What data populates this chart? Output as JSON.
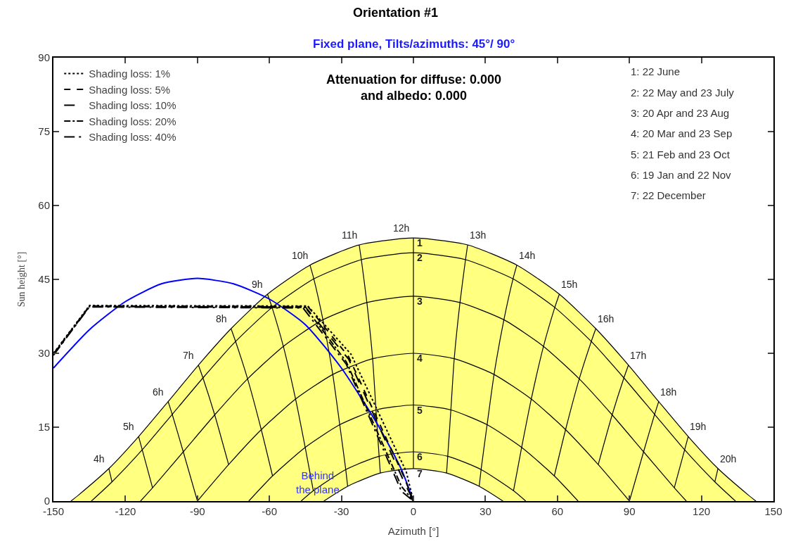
{
  "chart_data": {
    "type": "line",
    "title": "Orientation #1",
    "subtitle": "Fixed plane, Tilts/azimuths: 45°/ 90°",
    "xlabel": "Azimuth [°]",
    "ylabel": "Sun height [°]",
    "xlim": [
      -150,
      150
    ],
    "xticks": [
      -150,
      -120,
      -90,
      -60,
      -30,
      0,
      30,
      60,
      90,
      120,
      150
    ],
    "ylim": [
      0,
      90
    ],
    "yticks": [
      0,
      15,
      30,
      45,
      60,
      75,
      90
    ],
    "grid": false,
    "legend": "top left",
    "marker": "none",
    "series": [
      {
        "type": "area",
        "color": "#ffff80",
        "x": [
          -142.7,
          -139.6,
          -126.9,
          -114.5,
          -102.2,
          -89.6,
          -76.0,
          -60.8,
          -43.1,
          -22.6,
          0,
          22.6,
          43.1,
          60.8,
          76.0,
          89.6,
          102.2,
          114.5,
          126.9,
          139.6,
          142.7
        ],
        "values": [
          0,
          1.2,
          6.6,
          13.1,
          20.2,
          27.6,
          35.0,
          42.0,
          47.9,
          52.0,
          53.4,
          52.0,
          47.9,
          42.0,
          35.0,
          27.6,
          20.2,
          13.1,
          6.6,
          1.2,
          0
        ]
      },
      {
        "type": "line",
        "color": "#000000",
        "x": [
          -134.2,
          -125.6,
          -113.0,
          -100.5,
          -87.7,
          -74.1,
          -58.9,
          -41.5,
          -21.7,
          0,
          21.7,
          41.5,
          58.9,
          74.1,
          87.7,
          100.5,
          113.0,
          125.6,
          134.2
        ],
        "values": [
          0,
          3.9,
          10.4,
          17.6,
          25.0,
          32.4,
          39.3,
          45.1,
          49.0,
          50.4,
          49.0,
          45.1,
          39.3,
          32.4,
          25.0,
          17.6,
          10.4,
          3.9,
          0
        ]
      },
      {
        "type": "line",
        "color": "#000000",
        "x": [
          -113.7,
          -108.7,
          -95.9,
          -82.8,
          -69.1,
          -54.2,
          -37.7,
          -19.4,
          0,
          19.4,
          37.7,
          54.2,
          69.1,
          82.8,
          95.9,
          108.7,
          113.7
        ],
        "values": [
          0,
          2.7,
          10.0,
          17.5,
          24.8,
          31.4,
          36.8,
          40.3,
          41.6,
          40.3,
          36.8,
          31.4,
          24.8,
          17.5,
          10.0,
          2.7,
          0
        ]
      },
      {
        "type": "line",
        "color": "#000000",
        "x": [
          -90,
          -77.0,
          -63.4,
          -49.1,
          -33.6,
          -17.0,
          0,
          17.0,
          33.6,
          49.1,
          63.4,
          77.0,
          90
        ],
        "values": [
          0,
          7.4,
          14.5,
          20.7,
          25.7,
          28.9,
          30,
          28.9,
          25.7,
          20.7,
          14.5,
          7.4,
          0
        ]
      },
      {
        "type": "line",
        "color": "#000000",
        "x": [
          -68.6,
          -58.7,
          -45.1,
          -30.7,
          -15.6,
          0,
          15.6,
          30.7,
          45.1,
          58.7,
          68.6
        ],
        "values": [
          0,
          5.1,
          10.9,
          15.5,
          18.5,
          19.5,
          18.5,
          15.5,
          10.9,
          5.1,
          0
        ]
      },
      {
        "type": "line",
        "color": "#000000",
        "x": [
          -46.8,
          -41.7,
          -28.2,
          -14.3,
          0,
          14.3,
          28.2,
          41.7,
          46.8
        ],
        "values": [
          0,
          2.1,
          6.4,
          9.1,
          10.0,
          9.1,
          6.4,
          2.1,
          0
        ]
      },
      {
        "type": "area",
        "color": "#ffffff",
        "x": [
          -37.3,
          -27.4,
          -13.8,
          0,
          13.8,
          27.4,
          37.3
        ],
        "values": [
          0,
          3.0,
          5.7,
          6.6,
          5.7,
          3.0,
          0
        ]
      },
      {
        "type": "line",
        "color": "#000000",
        "x": [
          -126.9,
          -125.6
        ],
        "values": [
          6.6,
          3.9
        ]
      },
      {
        "type": "line",
        "color": "#000000",
        "x": [
          -114.5,
          -113.0,
          -108.7
        ],
        "values": [
          13.1,
          10.4,
          2.7
        ]
      },
      {
        "type": "line",
        "color": "#000000",
        "x": [
          -102.2,
          -100.5,
          -95.9,
          -90
        ],
        "values": [
          20.2,
          17.6,
          10.0,
          0
        ]
      },
      {
        "type": "line",
        "color": "#000000",
        "x": [
          -89.6,
          -87.7,
          -82.8,
          -77.0
        ],
        "values": [
          27.6,
          25.0,
          17.5,
          7.4
        ]
      },
      {
        "type": "line",
        "color": "#000000",
        "x": [
          -76.0,
          -74.1,
          -69.1,
          -63.4,
          -58.7
        ],
        "values": [
          35.0,
          32.4,
          24.8,
          14.5,
          5.1
        ]
      },
      {
        "type": "line",
        "color": "#000000",
        "x": [
          -60.8,
          -58.9,
          -54.2,
          -49.1,
          -45.1,
          -41.7
        ],
        "values": [
          42.0,
          39.3,
          31.4,
          20.7,
          10.9,
          2.1
        ]
      },
      {
        "type": "line",
        "color": "#000000",
        "x": [
          -43.1,
          -41.5,
          -37.7,
          -33.6,
          -30.7,
          -28.2,
          -27.4
        ],
        "values": [
          47.9,
          45.1,
          36.8,
          25.7,
          15.5,
          6.4,
          3.0
        ]
      },
      {
        "type": "line",
        "color": "#000000",
        "x": [
          -22.6,
          -21.7,
          -19.4,
          -17.0,
          -15.6,
          -14.3,
          -13.8
        ],
        "values": [
          52.0,
          49.0,
          40.3,
          28.9,
          18.5,
          9.1,
          5.7
        ]
      },
      {
        "type": "line",
        "color": "#000000",
        "x": [
          0,
          0,
          0,
          0,
          0,
          0,
          0
        ],
        "values": [
          53.4,
          50.4,
          41.6,
          30,
          19.5,
          10.0,
          6.6
        ]
      },
      {
        "type": "line",
        "color": "#000000",
        "x": [
          22.6,
          21.7,
          19.4,
          17.0,
          15.6,
          14.3,
          13.8
        ],
        "values": [
          52.0,
          49.0,
          40.3,
          28.9,
          18.5,
          9.1,
          5.7
        ]
      },
      {
        "type": "line",
        "color": "#000000",
        "x": [
          43.1,
          41.5,
          37.7,
          33.6,
          30.7,
          28.2,
          27.4
        ],
        "values": [
          47.9,
          45.1,
          36.8,
          25.7,
          15.5,
          6.4,
          3.0
        ]
      },
      {
        "type": "line",
        "color": "#000000",
        "x": [
          60.8,
          58.9,
          54.2,
          49.1,
          45.1,
          41.7
        ],
        "values": [
          42.0,
          39.3,
          31.4,
          20.7,
          10.9,
          2.1
        ]
      },
      {
        "type": "line",
        "color": "#000000",
        "x": [
          76.0,
          74.1,
          69.1,
          63.4,
          58.7
        ],
        "values": [
          35.0,
          32.4,
          24.8,
          14.5,
          5.1
        ]
      },
      {
        "type": "line",
        "color": "#000000",
        "x": [
          89.6,
          87.7,
          82.8,
          77.0
        ],
        "values": [
          27.6,
          25.0,
          17.5,
          7.4
        ]
      },
      {
        "type": "line",
        "color": "#000000",
        "x": [
          102.2,
          100.5,
          95.9,
          90
        ],
        "values": [
          20.2,
          17.6,
          10.0,
          0
        ]
      },
      {
        "type": "line",
        "color": "#000000",
        "x": [
          114.5,
          113.0,
          108.7
        ],
        "values": [
          13.1,
          10.4,
          2.7
        ]
      },
      {
        "type": "line",
        "color": "#000000",
        "x": [
          126.9,
          125.6
        ],
        "values": [
          6.6,
          3.9
        ]
      },
      {
        "type": "line",
        "color": "#0000ff",
        "x": [
          -150,
          -135,
          -120,
          -105,
          -90,
          -75,
          -60,
          -45,
          -30,
          -15,
          -5,
          0
        ],
        "values": [
          27.0,
          34.8,
          40.5,
          44.1,
          45.2,
          44.1,
          41.0,
          35.8,
          27.0,
          15.6,
          6.4,
          0
        ]
      },
      {
        "name": "Shading loss: 1%",
        "type": "line",
        "color": "#000000",
        "line_style": "dotted",
        "x": [
          -150,
          -135,
          -44,
          -26,
          -3,
          0
        ],
        "values": [
          30.0,
          39.7,
          39.6,
          29.8,
          6.0,
          0
        ]
      },
      {
        "name": "Shading loss: 5%",
        "type": "line",
        "color": "#000000",
        "line_style": "dashed",
        "x": [
          -150,
          -135,
          -44,
          -27,
          -4,
          0
        ],
        "values": [
          29.9,
          39.6,
          39.5,
          29.3,
          5.0,
          0
        ]
      },
      {
        "name": "Shading loss: 10%",
        "type": "line",
        "color": "#000000",
        "line_style": "longdash",
        "x": [
          -150,
          -135,
          -45,
          -27,
          -4,
          0
        ],
        "values": [
          29.8,
          39.5,
          39.4,
          28.8,
          4.0,
          0
        ]
      },
      {
        "name": "Shading loss: 20%",
        "type": "line",
        "color": "#000000",
        "line_style": "dashdot",
        "x": [
          -150,
          -135,
          -45,
          -28,
          -5,
          0
        ],
        "values": [
          29.7,
          39.5,
          39.3,
          28.3,
          3.0,
          0
        ]
      },
      {
        "name": "Shading loss: 40%",
        "type": "line",
        "color": "#000000",
        "line_style": "longdashdot",
        "x": [
          -150,
          -135,
          -46,
          -28,
          -5,
          0
        ],
        "values": [
          29.6,
          39.4,
          39.2,
          27.8,
          2.0,
          0
        ]
      }
    ],
    "annotations": [
      "Attenuation for diffuse: 0.000\nand albedo: 0.000",
      "1: 22 June",
      "2: 22 May and 23 July",
      "3: 20 Apr and 23 Aug",
      "4: 20 Mar and 23 Sep",
      "5: 21 Feb and 23 Oct",
      "6: 19 Jan and 22 Nov",
      "7: 22 December",
      {
        "text": "1",
        "x": 0,
        "y": 53.4
      },
      {
        "text": "2",
        "x": 0,
        "y": 50.4
      },
      {
        "text": "3",
        "x": 0,
        "y": 41.6
      },
      {
        "text": "4",
        "x": 0,
        "y": 30
      },
      {
        "text": "5",
        "x": 0,
        "y": 19.5
      },
      {
        "text": "6",
        "x": 0,
        "y": 10.0
      },
      {
        "text": "7",
        "x": 0,
        "y": 6.6
      },
      {
        "text": "4h",
        "x": -126.9,
        "y": 6.6
      },
      {
        "text": "5h",
        "x": -114.5,
        "y": 13.1
      },
      {
        "text": "6h",
        "x": -102.2,
        "y": 20.2
      },
      {
        "text": "7h",
        "x": -89.6,
        "y": 27.6
      },
      {
        "text": "8h",
        "x": -76.0,
        "y": 35.0
      },
      {
        "text": "9h",
        "x": -60.8,
        "y": 42.0
      },
      {
        "text": "10h",
        "x": -43.1,
        "y": 47.9
      },
      {
        "text": "11h",
        "x": -22.6,
        "y": 52.0
      },
      {
        "text": "12h",
        "x": 0,
        "y": 53.4
      },
      {
        "text": "13h",
        "x": 22.6,
        "y": 52.0
      },
      {
        "text": "14h",
        "x": 43.1,
        "y": 47.9
      },
      {
        "text": "15h",
        "x": 60.8,
        "y": 42.0
      },
      {
        "text": "16h",
        "x": 76.0,
        "y": 35.0
      },
      {
        "text": "17h",
        "x": 89.6,
        "y": 27.6
      },
      {
        "text": "18h",
        "x": 102.2,
        "y": 20.2
      },
      {
        "text": "19h",
        "x": 114.5,
        "y": 13.1
      },
      {
        "text": "20h",
        "x": 126.9,
        "y": 6.6
      },
      "Behind\nthe plane"
    ]
  }
}
